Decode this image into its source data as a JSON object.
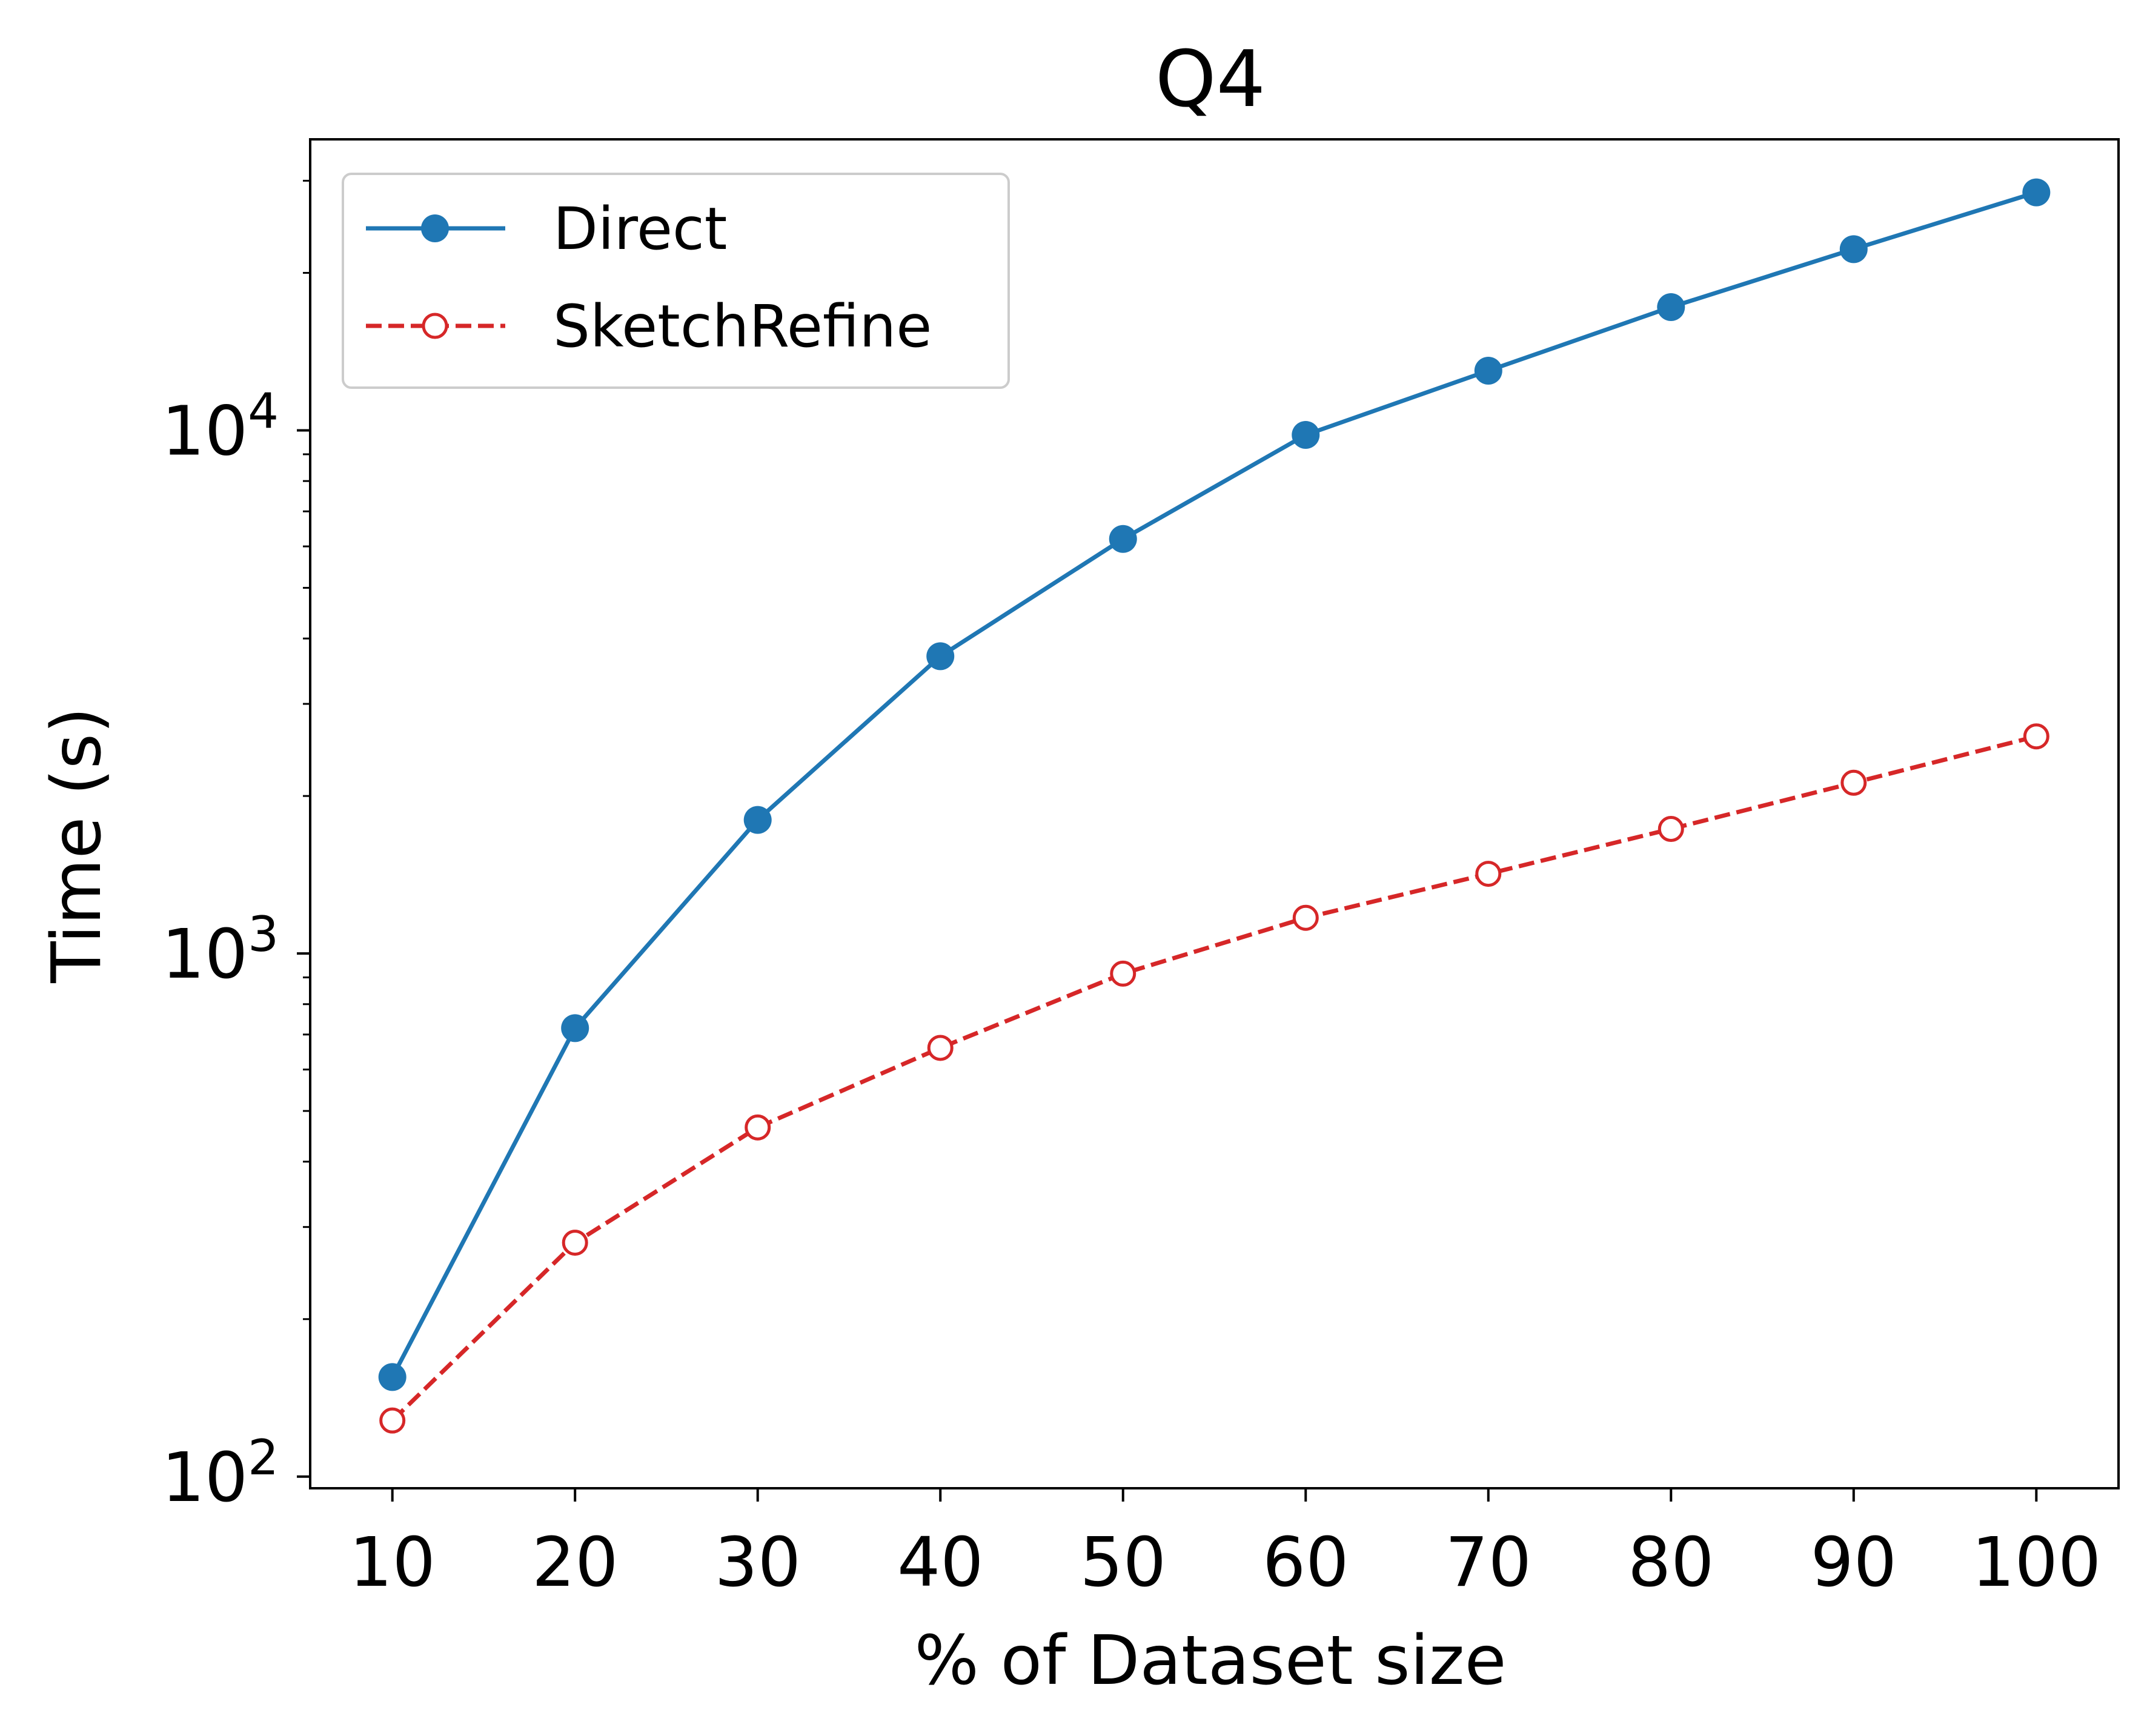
{
  "chart_data": {
    "type": "line",
    "title": "Q4",
    "xlabel": "% of Dataset size",
    "ylabel": "Time (s)",
    "yscale": "log",
    "x": [
      10,
      20,
      30,
      40,
      50,
      60,
      70,
      80,
      90,
      100
    ],
    "x_ticks": [
      "10",
      "20",
      "30",
      "40",
      "50",
      "60",
      "70",
      "80",
      "90",
      "100"
    ],
    "y_ticks": [
      {
        "value": 100,
        "base": "10",
        "exp": "2"
      },
      {
        "value": 1000,
        "base": "10",
        "exp": "3"
      },
      {
        "value": 10000,
        "base": "10",
        "exp": "4"
      }
    ],
    "xlim": [
      5.5,
      104.5
    ],
    "ylim": [
      95,
      36000
    ],
    "grid": false,
    "legend_position": "upper left",
    "series": [
      {
        "name": "Direct",
        "color": "#1f77b4",
        "line_style": "solid",
        "marker": "filled-circle",
        "values": [
          155,
          720,
          1800,
          3700,
          6200,
          9800,
          13000,
          17200,
          22200,
          28500
        ]
      },
      {
        "name": "SketchRefine",
        "color": "#d62728",
        "line_style": "dashed",
        "marker": "open-circle",
        "values": [
          128,
          280,
          465,
          660,
          915,
          1170,
          1420,
          1730,
          2120,
          2600
        ]
      }
    ]
  }
}
